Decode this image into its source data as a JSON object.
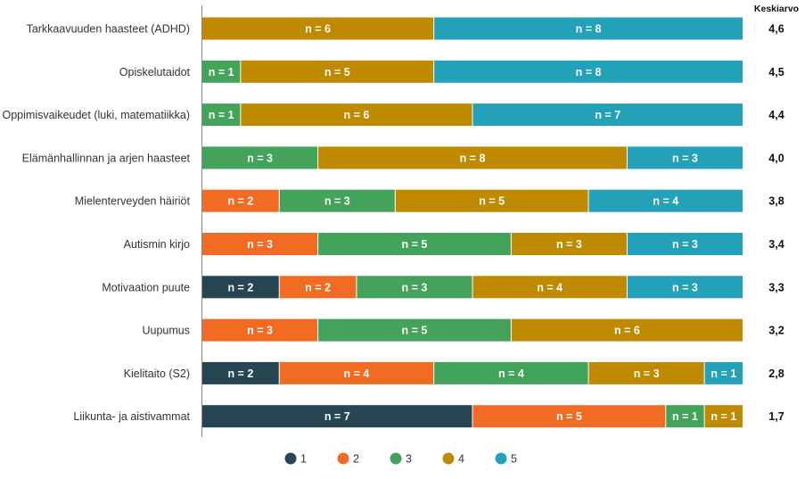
{
  "chart_data": {
    "type": "bar",
    "orientation": "horizontal",
    "stacked": true,
    "avg_header": "Keskiarvo",
    "categories": [
      "Tarkkaavuuden haasteet (ADHD)",
      "Opiskelutaidot",
      "Oppimisvaikeudet (luki, matematiikka)",
      "Elämänhallinnan ja arjen haasteet",
      "Mielenterveyden häiriöt",
      "Autismin kirjo",
      "Motivaation puute",
      "Uupumus",
      "Kielitaito (S2)",
      "Liikunta- ja aistivammat"
    ],
    "series": [
      {
        "name": "1",
        "color": "#264653",
        "values": [
          0,
          0,
          0,
          0,
          0,
          0,
          2,
          0,
          2,
          7
        ]
      },
      {
        "name": "2",
        "color": "#f26b23",
        "values": [
          0,
          0,
          0,
          0,
          2,
          3,
          2,
          3,
          4,
          5
        ]
      },
      {
        "name": "3",
        "color": "#43a35a",
        "values": [
          0,
          1,
          1,
          3,
          3,
          5,
          3,
          5,
          4,
          1
        ]
      },
      {
        "name": "4",
        "color": "#bf8a00",
        "values": [
          6,
          5,
          6,
          8,
          5,
          3,
          4,
          6,
          3,
          1
        ]
      },
      {
        "name": "5",
        "color": "#22a1b8",
        "values": [
          8,
          8,
          7,
          3,
          4,
          3,
          3,
          0,
          1,
          0
        ]
      }
    ],
    "averages": [
      "4,6",
      "4,5",
      "4,4",
      "4,0",
      "3,8",
      "3,4",
      "3,3",
      "3,2",
      "2,8",
      "1,7"
    ],
    "segment_label_prefix": "n = ",
    "total_per_row": 14,
    "legend_position": "bottom"
  }
}
